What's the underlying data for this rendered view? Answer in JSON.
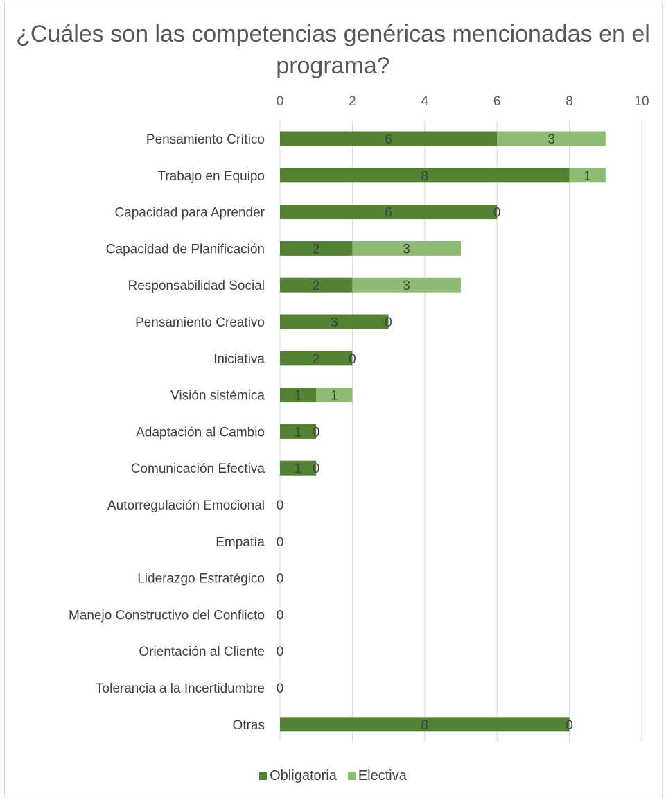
{
  "chart_data": {
    "type": "bar",
    "orientation": "horizontal",
    "stacked": true,
    "title": "¿Cuáles son las competencias genéricas mencionadas en el programa?",
    "categories": [
      "Pensamiento Crítico",
      "Trabajo en Equipo",
      "Capacidad para Aprender",
      "Capacidad de Planificación",
      "Responsabilidad Social",
      "Pensamiento Creativo",
      "Iniciativa",
      "Visión sistémica",
      "Adaptación al Cambio",
      "Comunicación Efectiva",
      "Autorregulación Emocional",
      "Empatía",
      "Liderazgo Estratégico",
      "Manejo Constructivo del Conflicto",
      "Orientación al Cliente",
      "Tolerancia a la Incertidumbre",
      "Otras"
    ],
    "series": [
      {
        "name": "Obligatoria",
        "color": "#548235",
        "values": [
          6,
          8,
          6,
          2,
          2,
          3,
          2,
          1,
          1,
          1,
          0,
          0,
          0,
          0,
          0,
          0,
          8
        ]
      },
      {
        "name": "Electiva",
        "color": "#8fbc74",
        "values": [
          3,
          1,
          0,
          3,
          3,
          0,
          0,
          1,
          0,
          0,
          null,
          null,
          null,
          null,
          null,
          null,
          0
        ]
      }
    ],
    "xlim": [
      0,
      10
    ],
    "xticks": [
      "0",
      "2",
      "4",
      "6",
      "8",
      "10"
    ],
    "grid": true,
    "legend_position": "bottom"
  }
}
